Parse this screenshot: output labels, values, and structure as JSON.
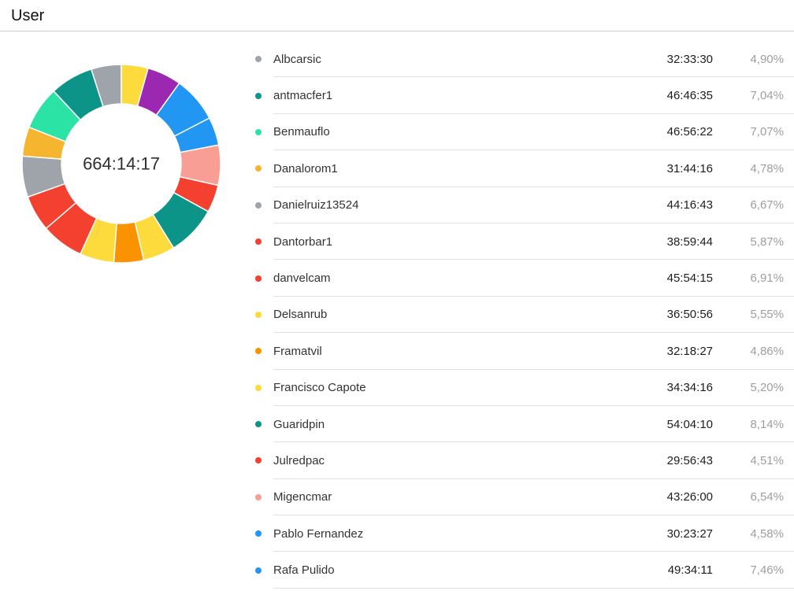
{
  "page": {
    "title": "User"
  },
  "chart_data": {
    "type": "pie",
    "variant": "donut",
    "center_label": "664:14:17",
    "direction": "counterclockwise_from_top",
    "unit": "percent",
    "segments": [
      {
        "label": "Albcarsic",
        "value": 4.9,
        "color": "#9EA4A9"
      },
      {
        "label": "antmacfer1",
        "value": 7.04,
        "color": "#0D9488"
      },
      {
        "label": "Benmauflo",
        "value": 7.07,
        "color": "#2BE3A4"
      },
      {
        "label": "Danalorom1",
        "value": 4.78,
        "color": "#F5B52F"
      },
      {
        "label": "Danielruiz13524",
        "value": 6.67,
        "color": "#9EA4A9"
      },
      {
        "label": "Dantorbar1",
        "value": 5.87,
        "color": "#F4402F"
      },
      {
        "label": "danvelcam",
        "value": 6.91,
        "color": "#F4402F"
      },
      {
        "label": "Delsanrub",
        "value": 5.55,
        "color": "#FDDB3C"
      },
      {
        "label": "Framatvil",
        "value": 4.86,
        "color": "#FB9300"
      },
      {
        "label": "Francisco Capote",
        "value": 5.2,
        "color": "#FDDB3C"
      },
      {
        "label": "Guaridpin",
        "value": 8.14,
        "color": "#0D9488"
      },
      {
        "label": "Julredpac",
        "value": 4.51,
        "color": "#F4402F"
      },
      {
        "label": "Migencmar",
        "value": 6.54,
        "color": "#F99E94"
      },
      {
        "label": "Pablo Fernandez",
        "value": 4.58,
        "color": "#2196F3"
      },
      {
        "label": "Rafa Pulido",
        "value": 7.46,
        "color": "#2196F3"
      },
      {
        "label": "",
        "value": 5.57,
        "color": "#9C27B0"
      },
      {
        "label": "",
        "value": 4.35,
        "color": "#FDDB3C"
      }
    ]
  },
  "users": [
    {
      "name": "Albcarsic",
      "time": "32:33:30",
      "percent": "4,90%",
      "color": "#9EA4A9"
    },
    {
      "name": "antmacfer1",
      "time": "46:46:35",
      "percent": "7,04%",
      "color": "#0D9488"
    },
    {
      "name": "Benmauflo",
      "time": "46:56:22",
      "percent": "7,07%",
      "color": "#2BE3A4"
    },
    {
      "name": "Danalorom1",
      "time": "31:44:16",
      "percent": "4,78%",
      "color": "#F5B52F"
    },
    {
      "name": "Danielruiz13524",
      "time": "44:16:43",
      "percent": "6,67%",
      "color": "#9EA4A9"
    },
    {
      "name": "Dantorbar1",
      "time": "38:59:44",
      "percent": "5,87%",
      "color": "#F4402F"
    },
    {
      "name": "danvelcam",
      "time": "45:54:15",
      "percent": "6,91%",
      "color": "#F4402F"
    },
    {
      "name": "Delsanrub",
      "time": "36:50:56",
      "percent": "5,55%",
      "color": "#FDDB3C"
    },
    {
      "name": "Framatvil",
      "time": "32:18:27",
      "percent": "4,86%",
      "color": "#FB9300"
    },
    {
      "name": "Francisco Capote",
      "time": "34:34:16",
      "percent": "5,20%",
      "color": "#FDDB3C"
    },
    {
      "name": "Guaridpin",
      "time": "54:04:10",
      "percent": "8,14%",
      "color": "#0D9488"
    },
    {
      "name": "Julredpac",
      "time": "29:56:43",
      "percent": "4,51%",
      "color": "#F4402F"
    },
    {
      "name": "Migencmar",
      "time": "43:26:00",
      "percent": "6,54%",
      "color": "#F99E94"
    },
    {
      "name": "Pablo Fernandez",
      "time": "30:23:27",
      "percent": "4,58%",
      "color": "#2196F3"
    },
    {
      "name": "Rafa Pulido",
      "time": "49:34:11",
      "percent": "7,46%",
      "color": "#2196F3"
    }
  ]
}
